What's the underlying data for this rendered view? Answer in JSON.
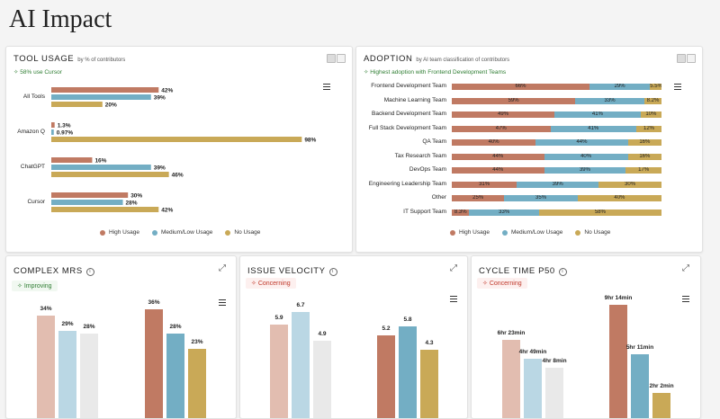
{
  "page": {
    "title": "AI Impact"
  },
  "colors": {
    "high": "#c07a63",
    "medium": "#73aec4",
    "none": "#c9a957",
    "bar1": "#e2bdb0",
    "bar2": "#bad7e4",
    "bar3": "#e9e9e9"
  },
  "tool_usage": {
    "title": "TOOL USAGE",
    "subtitle": "by % of contributors",
    "badge": "58% use Cursor",
    "legend": [
      "High Usage",
      "Medium/Low Usage",
      "No Usage"
    ],
    "chart_data": {
      "type": "bar",
      "categories": [
        "All Tools",
        "Amazon Q",
        "ChatGPT",
        "Cursor"
      ],
      "series": [
        {
          "name": "High Usage",
          "values": [
            42,
            1.3,
            16,
            30
          ]
        },
        {
          "name": "Medium/Low Usage",
          "values": [
            39,
            0.97,
            39,
            28
          ]
        },
        {
          "name": "No Usage",
          "values": [
            20,
            98,
            46,
            42
          ]
        }
      ],
      "labels": [
        [
          "42%",
          "39%",
          "20%"
        ],
        [
          "1.3%",
          "0.97%",
          "98%"
        ],
        [
          "16%",
          "39%",
          "46%"
        ],
        [
          "30%",
          "28%",
          "42%"
        ]
      ]
    }
  },
  "adoption": {
    "title": "ADOPTION",
    "subtitle": "by AI team classification of contributors",
    "badge": "Highest adoption with Frontend Development Teams",
    "legend": [
      "High Usage",
      "Medium/Low Usage",
      "No Usage"
    ],
    "chart_data": {
      "type": "bar",
      "categories": [
        "Frontend Development Team",
        "Machine Learning Team",
        "Backend Development Team",
        "Full Stack Development Team",
        "QA Team",
        "Tax Research Team",
        "DevOps Team",
        "Engineering Leadership Team",
        "Other",
        "IT Support Team"
      ],
      "series": [
        {
          "name": "High Usage",
          "values": [
            66,
            59,
            49,
            47,
            40,
            44,
            44,
            31,
            25,
            8.3
          ]
        },
        {
          "name": "Medium/Low Usage",
          "values": [
            29,
            33,
            41,
            41,
            44,
            40,
            39,
            39,
            35,
            33
          ]
        },
        {
          "name": "No Usage",
          "values": [
            5.5,
            8.2,
            10,
            12,
            16,
            16,
            17,
            30,
            40,
            58
          ]
        }
      ],
      "labels": [
        [
          "66%",
          "29%",
          "5.5%"
        ],
        [
          "59%",
          "33%",
          "8.2%"
        ],
        [
          "49%",
          "41%",
          "10%"
        ],
        [
          "47%",
          "41%",
          "12%"
        ],
        [
          "40%",
          "44%",
          "16%"
        ],
        [
          "44%",
          "40%",
          "16%"
        ],
        [
          "44%",
          "39%",
          "17%"
        ],
        [
          "31%",
          "39%",
          "30%"
        ],
        [
          "25%",
          "35%",
          "40%"
        ],
        [
          "8.3%",
          "33%",
          "58%"
        ]
      ]
    }
  },
  "complex_mrs": {
    "title": "COMPLEX MRS",
    "badge": "Improving",
    "chart_data": {
      "type": "bar",
      "groups": [
        {
          "values": [
            34,
            29,
            28
          ],
          "labels": [
            "34%",
            "29%",
            "28%"
          ]
        },
        {
          "values": [
            36,
            28,
            23
          ],
          "labels": [
            "36%",
            "28%",
            "23%"
          ]
        }
      ]
    }
  },
  "issue_velocity": {
    "title": "ISSUE VELOCITY",
    "badge": "Concerning",
    "chart_data": {
      "type": "bar",
      "groups": [
        {
          "values": [
            5.9,
            6.7,
            4.9
          ],
          "labels": [
            "5.9",
            "6.7",
            "4.9"
          ]
        },
        {
          "values": [
            5.2,
            5.8,
            4.3
          ],
          "labels": [
            "5.2",
            "5.8",
            "4.3"
          ]
        }
      ]
    }
  },
  "cycle_time": {
    "title": "CYCLE TIME P50",
    "badge": "Concerning",
    "chart_data": {
      "type": "bar",
      "groups": [
        {
          "values": [
            383,
            289,
            248
          ],
          "labels": [
            "6hr 23min",
            "4hr 49min",
            "4hr 8min"
          ]
        },
        {
          "values": [
            554,
            311,
            122
          ],
          "labels": [
            "9hr 14min",
            "5hr 11min",
            "2hr 2min"
          ]
        }
      ]
    }
  }
}
